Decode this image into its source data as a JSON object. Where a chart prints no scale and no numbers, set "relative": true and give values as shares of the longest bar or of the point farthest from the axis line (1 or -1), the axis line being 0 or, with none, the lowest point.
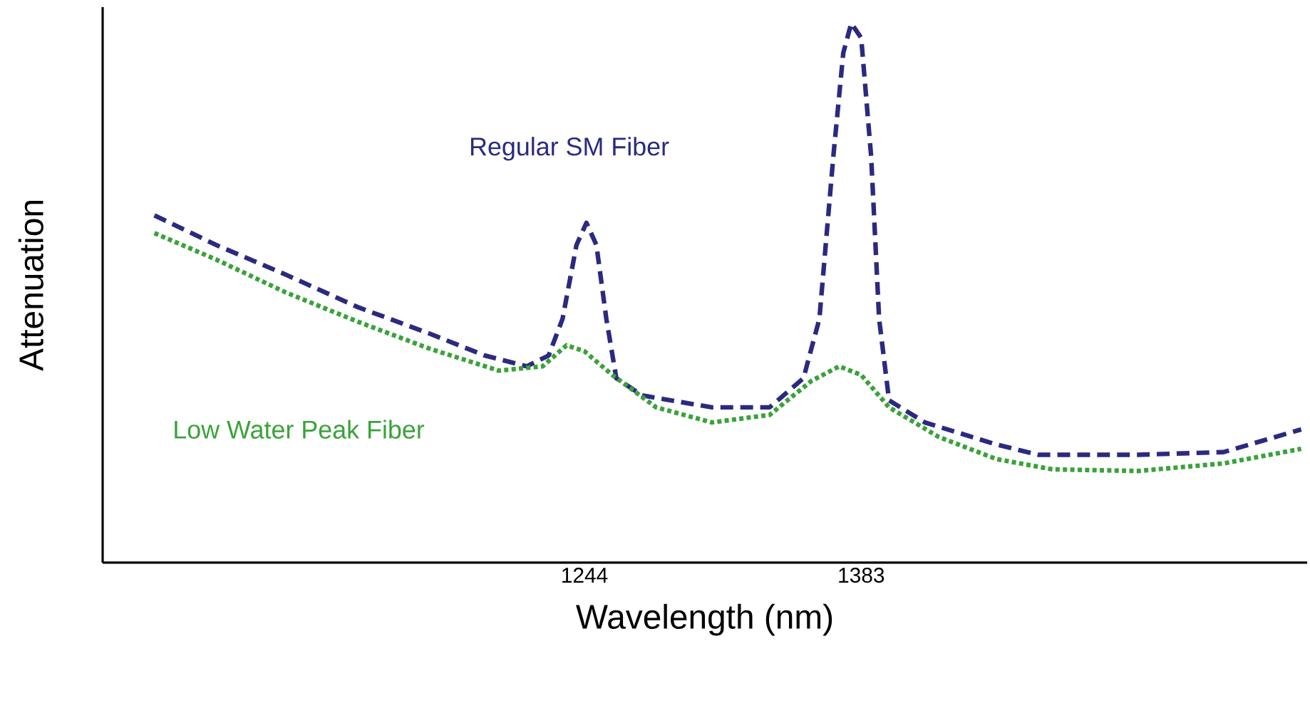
{
  "chart_data": {
    "type": "line",
    "relative": true,
    "xlabel": "Wavelength (nm)",
    "ylabel": "Attenuation",
    "xlim": [
      1002,
      1607
    ],
    "xticks": [
      1244,
      1383
    ],
    "tick_labels": "x",
    "grid": false,
    "legend": false,
    "marker": "none",
    "series": [
      {
        "name": "Regular SM Fiber",
        "color": "#2b2a80",
        "line_style": "dashed",
        "x": [
          1028,
          1059,
          1094,
          1130,
          1166,
          1194,
          1215,
          1226,
          1233,
          1240,
          1245,
          1250,
          1255,
          1260,
          1273,
          1308,
          1337,
          1354,
          1362,
          1369,
          1374,
          1378,
          1383,
          1388,
          1392,
          1397,
          1415,
          1451,
          1472,
          1522,
          1565,
          1604
        ],
        "values": [
          0.644,
          0.589,
          0.534,
          0.474,
          0.425,
          0.384,
          0.364,
          0.384,
          0.452,
          0.589,
          0.63,
          0.589,
          0.452,
          0.342,
          0.31,
          0.288,
          0.288,
          0.342,
          0.452,
          0.753,
          0.945,
          1,
          0.973,
          0.753,
          0.452,
          0.301,
          0.26,
          0.219,
          0.2,
          0.2,
          0.205,
          0.247
        ]
      },
      {
        "name": "Low Water Peak Fiber",
        "color": "#3aa23a",
        "line_style": "dotted",
        "x": [
          1028,
          1059,
          1094,
          1130,
          1166,
          1201,
          1223,
          1235,
          1244,
          1258,
          1280,
          1308,
          1337,
          1358,
          1372,
          1383,
          1397,
          1422,
          1451,
          1479,
          1522,
          1565,
          1604
        ],
        "values": [
          0.611,
          0.562,
          0.501,
          0.447,
          0.397,
          0.356,
          0.364,
          0.403,
          0.392,
          0.348,
          0.288,
          0.26,
          0.274,
          0.337,
          0.364,
          0.348,
          0.288,
          0.233,
          0.192,
          0.173,
          0.17,
          0.184,
          0.211
        ]
      }
    ]
  }
}
